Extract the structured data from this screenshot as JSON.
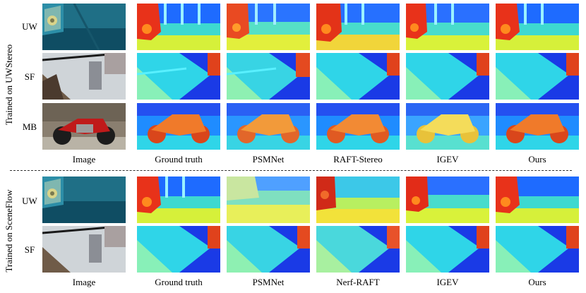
{
  "section_labels": [
    "Trained on UWStereo",
    "Trained on SceneFlow"
  ],
  "top_rows": [
    "UW",
    "SF",
    "MB"
  ],
  "bottom_rows": [
    "UW",
    "SF"
  ],
  "top_columns": [
    "Image",
    "Ground truth",
    "PSMNet",
    "RAFT-Stereo",
    "IGEV",
    "Ours"
  ],
  "bottom_columns": [
    "Image",
    "Ground truth",
    "PSMNet",
    "Nerf-RAFT",
    "IGEV",
    "Ours"
  ]
}
